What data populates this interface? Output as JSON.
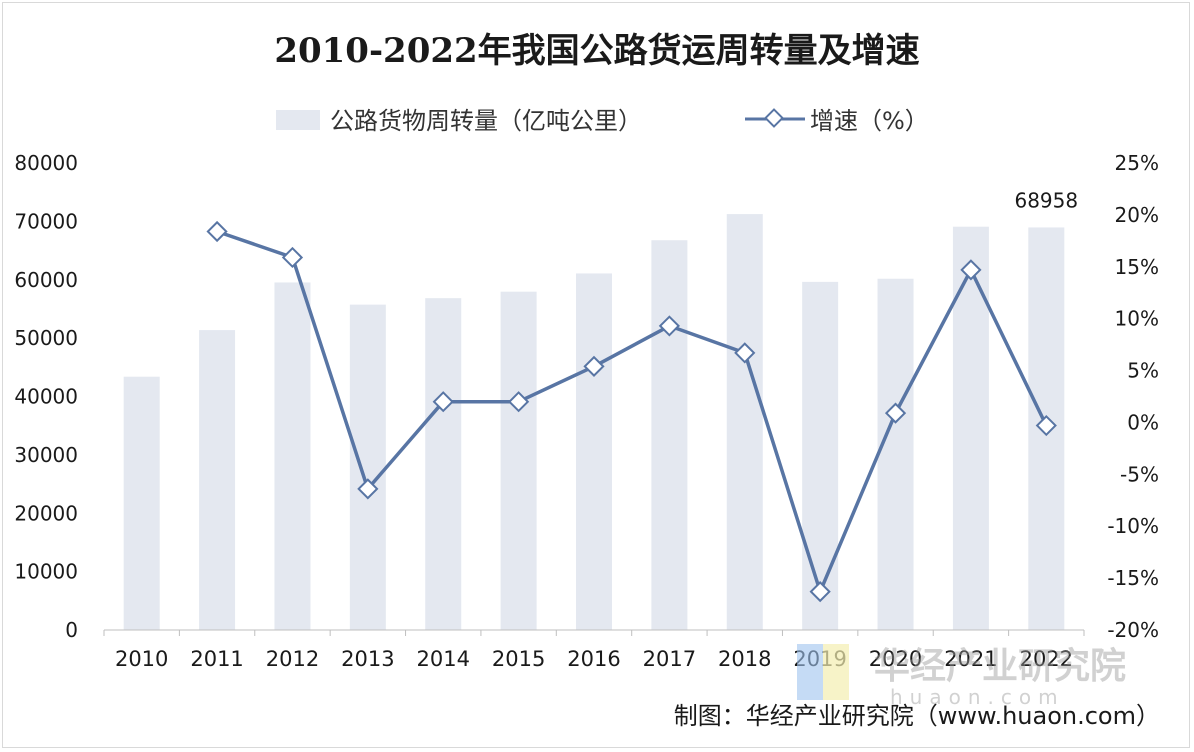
{
  "chart_data": {
    "type": "bar",
    "title": "2010-2022年我国公路货运周转量及增速",
    "categories": [
      "2010",
      "2011",
      "2012",
      "2013",
      "2014",
      "2015",
      "2016",
      "2017",
      "2018",
      "2019",
      "2020",
      "2021",
      "2022"
    ],
    "series": [
      {
        "name": "公路货物周转量（亿吨公里）",
        "type": "bar",
        "axis": "left",
        "values": [
          43390,
          51375,
          59535,
          55738,
          56847,
          57956,
          61080,
          66772,
          71249,
          59636,
          60172,
          69088,
          68958
        ]
      },
      {
        "name": "增速（%）",
        "type": "line",
        "axis": "right",
        "values": [
          null,
          18.4,
          15.9,
          -6.4,
          2.0,
          2.0,
          5.4,
          9.3,
          6.7,
          -16.3,
          0.9,
          14.7,
          -0.3
        ]
      }
    ],
    "data_labels": [
      {
        "category": "2022",
        "text": "68958"
      }
    ],
    "y_left": {
      "min": 0,
      "max": 80000,
      "ticks": [
        "0",
        "10000",
        "20000",
        "30000",
        "40000",
        "50000",
        "60000",
        "70000",
        "80000"
      ]
    },
    "y_right": {
      "min": -20,
      "max": 25,
      "ticks": [
        "-20%",
        "-15%",
        "-10%",
        "-5%",
        "0%",
        "5%",
        "10%",
        "15%",
        "20%",
        "25%"
      ]
    },
    "legend": "top",
    "grid": false,
    "colors": {
      "bar": "#e4e8f0",
      "line": "#5875a4",
      "marker_fill": "#ffffff"
    }
  },
  "source": "制图：华经产业研究院（www.huaon.com）",
  "watermark": {
    "logo_text": "华经产业研究院",
    "url_text": "huaon.com"
  }
}
